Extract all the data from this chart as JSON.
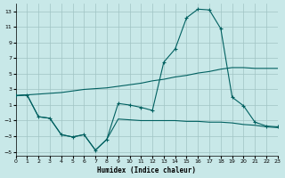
{
  "background_color": "#c8e8e8",
  "grid_color": "#a0c4c4",
  "line_color": "#006060",
  "xlim": [
    0,
    23
  ],
  "ylim": [
    -5.5,
    14.0
  ],
  "yticks": [
    -5,
    -3,
    -1,
    1,
    3,
    5,
    7,
    9,
    11,
    13
  ],
  "xticks": [
    0,
    1,
    2,
    3,
    4,
    5,
    6,
    7,
    8,
    9,
    10,
    11,
    12,
    13,
    14,
    15,
    16,
    17,
    18,
    19,
    20,
    21,
    22,
    23
  ],
  "xlabel": "Humidex (Indice chaleur)",
  "line1_x": [
    0,
    1,
    2,
    3,
    4,
    5,
    6,
    7,
    8,
    9,
    10,
    11,
    12,
    13,
    14,
    15,
    16,
    17,
    18,
    19,
    20,
    21,
    22,
    23
  ],
  "line1_y": [
    2.2,
    2.3,
    2.4,
    2.5,
    2.6,
    2.8,
    3.0,
    3.1,
    3.2,
    3.4,
    3.6,
    3.8,
    4.1,
    4.3,
    4.6,
    4.8,
    5.1,
    5.3,
    5.6,
    5.8,
    5.8,
    5.7,
    5.7,
    5.7
  ],
  "line2_x": [
    0,
    1,
    2,
    3,
    4,
    5,
    6,
    7,
    8,
    9,
    10,
    11,
    12,
    13,
    14,
    15,
    16,
    17,
    18,
    19,
    20,
    21,
    22,
    23
  ],
  "line2_y": [
    2.2,
    2.3,
    -0.5,
    -0.7,
    -2.8,
    -3.1,
    -2.8,
    -4.8,
    -3.4,
    1.2,
    1.0,
    0.7,
    0.3,
    6.5,
    8.2,
    12.2,
    13.3,
    13.2,
    10.8,
    2.0,
    0.9,
    -1.2,
    -1.7,
    -1.8
  ],
  "line3_x": [
    0,
    1,
    2,
    3,
    4,
    5,
    6,
    7,
    8,
    9,
    10,
    11,
    12,
    13,
    14,
    15,
    16,
    17,
    18,
    19,
    20,
    21,
    22,
    23
  ],
  "line3_y": [
    2.2,
    2.3,
    -0.5,
    -0.7,
    -2.8,
    -3.1,
    -2.8,
    -4.8,
    -3.4,
    -0.8,
    -0.9,
    -1.0,
    -1.0,
    -1.0,
    -1.0,
    -1.1,
    -1.1,
    -1.2,
    -1.2,
    -1.3,
    -1.5,
    -1.6,
    -1.8,
    -1.9
  ]
}
